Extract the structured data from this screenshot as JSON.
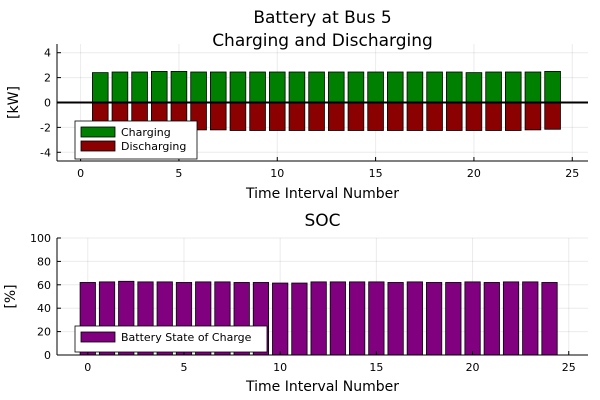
{
  "chart_data": [
    {
      "type": "bar",
      "title_lines": [
        "Battery at Bus 5",
        "Charging and Discharging"
      ],
      "xlabel": "Time Interval Number",
      "ylabel": "[kW]",
      "xlim": [
        -1.2,
        25.8
      ],
      "ylim": [
        -4.7,
        4.7
      ],
      "xticks": [
        0,
        5,
        10,
        15,
        20,
        25
      ],
      "yticks": [
        -4,
        -2,
        0,
        2,
        4
      ],
      "grid": true,
      "legend": "bottom-left",
      "zero_line": true,
      "bar_width": 0.8,
      "x": [
        1,
        2,
        3,
        4,
        5,
        6,
        7,
        8,
        9,
        10,
        11,
        12,
        13,
        14,
        15,
        16,
        17,
        18,
        19,
        20,
        21,
        22,
        23,
        24
      ],
      "series": [
        {
          "name": "Charging",
          "color": "#008000",
          "values": [
            2.4,
            2.45,
            2.45,
            2.5,
            2.5,
            2.45,
            2.45,
            2.45,
            2.45,
            2.45,
            2.45,
            2.45,
            2.45,
            2.45,
            2.45,
            2.45,
            2.45,
            2.45,
            2.45,
            2.4,
            2.45,
            2.45,
            2.45,
            2.5
          ]
        },
        {
          "name": "Discharging",
          "color": "#8b0000",
          "values": [
            -2.1,
            -2.1,
            -2.15,
            -2.15,
            -2.15,
            -2.2,
            -2.2,
            -2.25,
            -2.25,
            -2.25,
            -2.25,
            -2.25,
            -2.25,
            -2.25,
            -2.25,
            -2.25,
            -2.25,
            -2.25,
            -2.25,
            -2.25,
            -2.25,
            -2.25,
            -2.2,
            -2.15
          ]
        }
      ]
    },
    {
      "type": "bar",
      "title_lines": [
        "SOC"
      ],
      "xlabel": "Time Interval Number",
      "ylabel": "[%]",
      "xlim": [
        -1.6,
        26.0
      ],
      "ylim": [
        0,
        100
      ],
      "xticks": [
        0,
        5,
        10,
        15,
        20,
        25
      ],
      "yticks": [
        0,
        20,
        40,
        60,
        80,
        100
      ],
      "grid": true,
      "legend": "bottom-left",
      "zero_line": false,
      "bar_width": 0.8,
      "x": [
        0,
        1,
        2,
        3,
        4,
        5,
        6,
        7,
        8,
        9,
        10,
        11,
        12,
        13,
        14,
        15,
        16,
        17,
        18,
        19,
        20,
        21,
        22,
        23,
        24
      ],
      "series": [
        {
          "name": "Battery State of Charge",
          "color": "#800080",
          "values": [
            62,
            62.5,
            63,
            62.5,
            62.5,
            62,
            62.5,
            62.5,
            62,
            62,
            61.5,
            61.5,
            62.5,
            62.5,
            62.5,
            62.5,
            62,
            62.5,
            62,
            62,
            62.5,
            62,
            62.5,
            62.5,
            62
          ]
        }
      ]
    }
  ]
}
